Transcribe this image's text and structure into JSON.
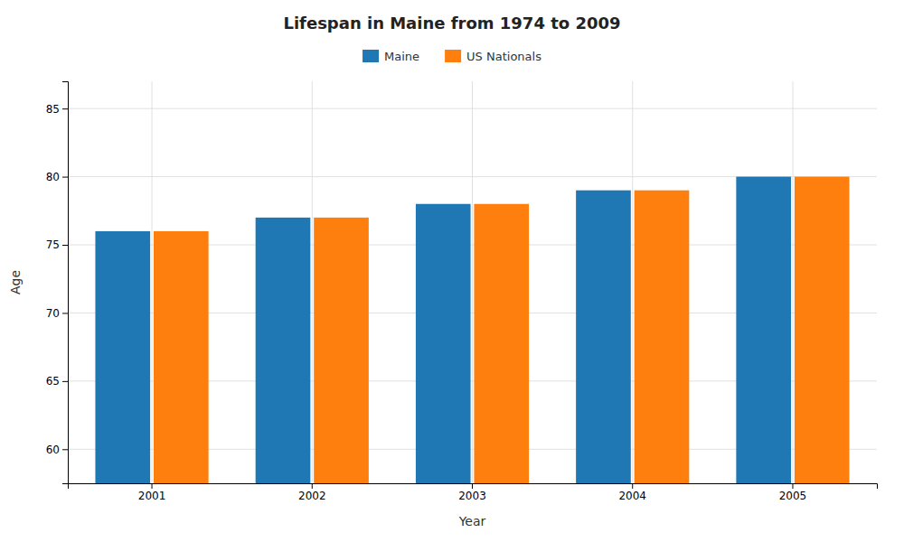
{
  "chart_data": {
    "type": "bar",
    "title": "Lifespan in Maine from 1974 to 2009",
    "xlabel": "Year",
    "ylabel": "Age",
    "categories": [
      "2001",
      "2002",
      "2003",
      "2004",
      "2005"
    ],
    "series": [
      {
        "name": "Maine",
        "values": [
          76.0,
          77.0,
          78.0,
          79.0,
          80.0
        ]
      },
      {
        "name": "US Nationals",
        "values": [
          76.0,
          77.0,
          78.0,
          79.0,
          80.0
        ]
      }
    ],
    "ylim": [
      57.5,
      87
    ],
    "yticks": [
      60,
      65,
      70,
      75,
      80,
      85
    ],
    "grid": true,
    "legend": "top"
  }
}
